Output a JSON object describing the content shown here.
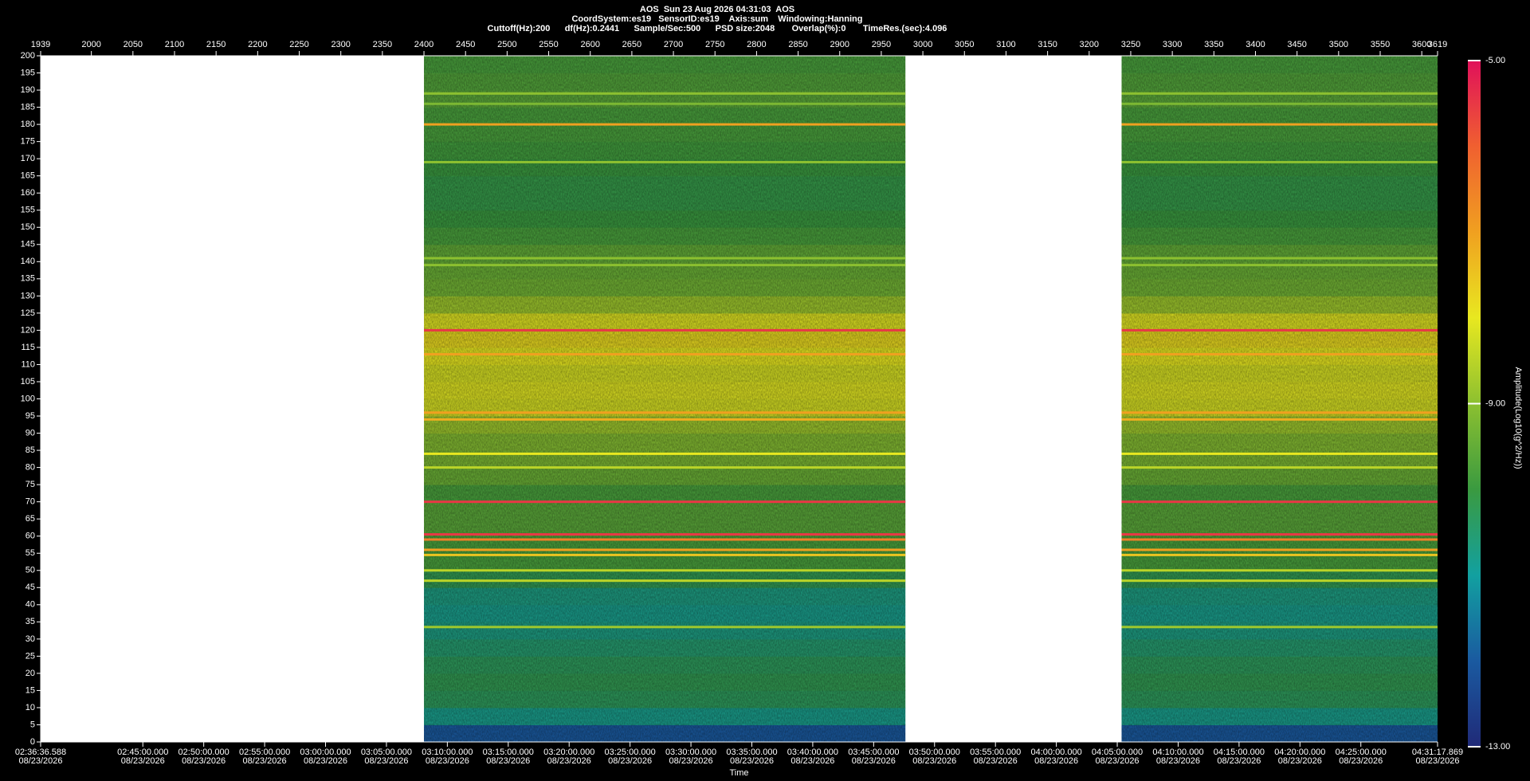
{
  "header": {
    "line1": "AOS  Sun 23 Aug 2026 04:31:03  AOS",
    "line2": "CoordSystem:es19   SensorID:es19    Axis:sum    Windowing:Hanning",
    "line3": "Cuttoff(Hz):200      df(Hz):0.2441      Sample/Sec:500      PSD size:2048       Overlap(%):0       TimeRes.(sec):4.096"
  },
  "chart_data": {
    "type": "spectrogram",
    "xlim": [
      1939,
      3619
    ],
    "xticks": [
      1939,
      2000,
      2050,
      2100,
      2150,
      2200,
      2250,
      2300,
      2350,
      2400,
      2450,
      2500,
      2550,
      2600,
      2650,
      2700,
      2750,
      2800,
      2850,
      2900,
      2950,
      3000,
      3050,
      3100,
      3150,
      3200,
      3250,
      3300,
      3350,
      3400,
      3450,
      3500,
      3550,
      3600,
      3619
    ],
    "time_lim": [
      9396.588,
      16277.869
    ],
    "time_ticks": [
      {
        "value": 9396.588,
        "label": "02:36:36.588",
        "date": "08/23/2026"
      },
      {
        "value": 9900,
        "label": "02:45:00.000",
        "date": "08/23/2026"
      },
      {
        "value": 10200,
        "label": "02:50:00.000",
        "date": "08/23/2026"
      },
      {
        "value": 10500,
        "label": "02:55:00.000",
        "date": "08/23/2026"
      },
      {
        "value": 10800,
        "label": "03:00:00.000",
        "date": "08/23/2026"
      },
      {
        "value": 11100,
        "label": "03:05:00.000",
        "date": "08/23/2026"
      },
      {
        "value": 11400,
        "label": "03:10:00.000",
        "date": "08/23/2026"
      },
      {
        "value": 11700,
        "label": "03:15:00.000",
        "date": "08/23/2026"
      },
      {
        "value": 12000,
        "label": "03:20:00.000",
        "date": "08/23/2026"
      },
      {
        "value": 12300,
        "label": "03:25:00.000",
        "date": "08/23/2026"
      },
      {
        "value": 12600,
        "label": "03:30:00.000",
        "date": "08/23/2026"
      },
      {
        "value": 12900,
        "label": "03:35:00.000",
        "date": "08/23/2026"
      },
      {
        "value": 13200,
        "label": "03:40:00.000",
        "date": "08/23/2026"
      },
      {
        "value": 13500,
        "label": "03:45:00.000",
        "date": "08/23/2026"
      },
      {
        "value": 13800,
        "label": "03:50:00.000",
        "date": "08/23/2026"
      },
      {
        "value": 14100,
        "label": "03:55:00.000",
        "date": "08/23/2026"
      },
      {
        "value": 14400,
        "label": "04:00:00.000",
        "date": "08/23/2026"
      },
      {
        "value": 14700,
        "label": "04:05:00.000",
        "date": "08/23/2026"
      },
      {
        "value": 15000,
        "label": "04:10:00.000",
        "date": "08/23/2026"
      },
      {
        "value": 15300,
        "label": "04:15:00.000",
        "date": "08/23/2026"
      },
      {
        "value": 15600,
        "label": "04:20:00.000",
        "date": "08/23/2026"
      },
      {
        "value": 15900,
        "label": "04:25:00.000",
        "date": "08/23/2026"
      },
      {
        "value": 16277.869,
        "label": "04:31:17.869",
        "date": "08/23/2026"
      }
    ],
    "xlabel": "Time",
    "ylim": [
      0,
      200
    ],
    "yticks": [
      0,
      5,
      10,
      15,
      20,
      25,
      30,
      35,
      40,
      45,
      50,
      55,
      60,
      65,
      70,
      75,
      80,
      85,
      90,
      95,
      100,
      105,
      110,
      115,
      120,
      125,
      130,
      135,
      140,
      145,
      150,
      155,
      160,
      165,
      170,
      175,
      180,
      185,
      190,
      195,
      200
    ],
    "segments": [
      [
        2400,
        2979
      ],
      [
        3239,
        3619
      ]
    ],
    "freq_bins": [
      0,
      5,
      10,
      15,
      20,
      25,
      30,
      35,
      40,
      45,
      50,
      55,
      60,
      65,
      70,
      75,
      80,
      85,
      90,
      95,
      100,
      105,
      110,
      115,
      120,
      125,
      130,
      135,
      140,
      145,
      150,
      155,
      160,
      165,
      170,
      175,
      180,
      185,
      190,
      195,
      200
    ],
    "levels": [
      -12,
      -10.8,
      -10.3,
      -10.2,
      -10.3,
      -10.5,
      -10.7,
      -10.8,
      -10.7,
      -10.2,
      -9.8,
      -9.8,
      -9.6,
      -9.6,
      -9.8,
      -9.4,
      -9.2,
      -9.1,
      -8.8,
      -8.2,
      -8.1,
      -8.2,
      -8,
      -7.8,
      -8.1,
      -8.8,
      -9.3,
      -9.4,
      -9.5,
      -9.8,
      -10,
      -10.1,
      -10.1,
      -10,
      -9.9,
      -9.8,
      -9.8,
      -9.6,
      -9.7,
      -9.8
    ],
    "lines": [
      {
        "freq": 189,
        "level": -9
      },
      {
        "freq": 186,
        "level": -9.2
      },
      {
        "freq": 180,
        "level": -7
      },
      {
        "freq": 169,
        "level": -9
      },
      {
        "freq": 141,
        "level": -9
      },
      {
        "freq": 139,
        "level": -9
      },
      {
        "freq": 120,
        "level": -5.5
      },
      {
        "freq": 113,
        "level": -7
      },
      {
        "freq": 96,
        "level": -7
      },
      {
        "freq": 94,
        "level": -7.2
      },
      {
        "freq": 84,
        "level": -8
      },
      {
        "freq": 80,
        "level": -8.5
      },
      {
        "freq": 70,
        "level": -5.5
      },
      {
        "freq": 60.5,
        "level": -5.5
      },
      {
        "freq": 59,
        "level": -6.5
      },
      {
        "freq": 56,
        "level": -7
      },
      {
        "freq": 54.5,
        "level": -7.5
      },
      {
        "freq": 50,
        "level": -8.5
      },
      {
        "freq": 47,
        "level": -8.5
      },
      {
        "freq": 33.5,
        "level": -8.8
      }
    ],
    "clim": [
      -13,
      -5
    ],
    "cticks": [
      {
        "value": -5,
        "label": "-5.00"
      },
      {
        "value": -9,
        "label": "-9.00"
      },
      {
        "value": -13,
        "label": "-13.00"
      }
    ],
    "colorbar_label": "Amplitude(Log10(g^2/Hz))",
    "colormap": [
      "#202a78",
      "#1a5aa0",
      "#12a0a0",
      "#3a9a40",
      "#8cc030",
      "#e8e820",
      "#f0a020",
      "#f06030",
      "#e0105a"
    ]
  }
}
